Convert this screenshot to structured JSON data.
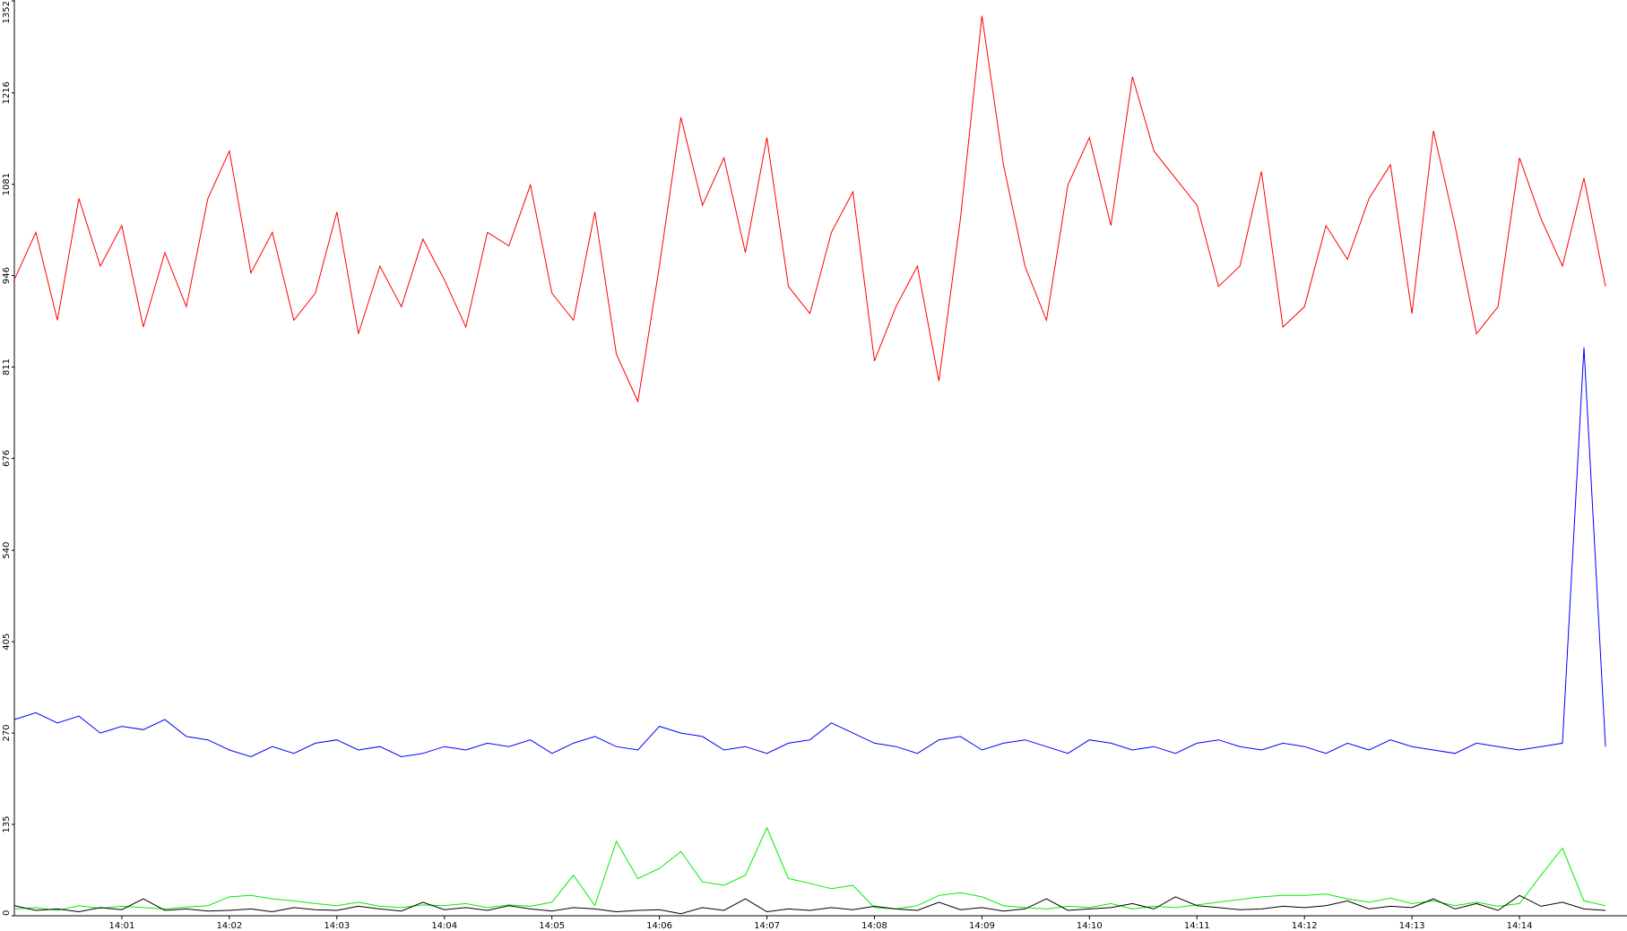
{
  "chart_data": {
    "type": "line",
    "x": [
      0,
      0.2,
      0.4,
      0.6,
      0.8,
      1,
      1.2,
      1.4,
      1.6,
      1.8,
      2,
      2.2,
      2.4,
      2.6,
      2.8,
      3,
      3.2,
      3.4,
      3.6,
      3.8,
      4,
      4.2,
      4.4,
      4.6,
      4.8,
      5,
      5.2,
      5.4,
      5.6,
      5.8,
      6,
      6.2,
      6.4,
      6.6,
      6.8,
      7,
      7.2,
      7.4,
      7.6,
      7.8,
      8,
      8.2,
      8.4,
      8.6,
      8.8,
      9,
      9.2,
      9.4,
      9.6,
      9.8,
      10,
      10.2,
      10.4,
      10.6,
      10.8,
      11,
      11.2,
      11.4,
      11.6,
      11.8,
      12,
      12.2,
      12.4,
      12.6,
      12.8,
      13,
      13.2,
      13.4,
      13.6,
      13.8,
      14,
      14.2,
      14.4,
      14.6,
      14.8
    ],
    "xlim": [
      0,
      15
    ],
    "xticks": [
      {
        "value": 1,
        "label": "14:01"
      },
      {
        "value": 2,
        "label": "14:02"
      },
      {
        "value": 3,
        "label": "14:03"
      },
      {
        "value": 4,
        "label": "14:04"
      },
      {
        "value": 5,
        "label": "14:05"
      },
      {
        "value": 6,
        "label": "14:06"
      },
      {
        "value": 7,
        "label": "14:07"
      },
      {
        "value": 8,
        "label": "14:08"
      },
      {
        "value": 9,
        "label": "14:09"
      },
      {
        "value": 10,
        "label": "14:10"
      },
      {
        "value": 11,
        "label": "14:11"
      },
      {
        "value": 12,
        "label": "14:12"
      },
      {
        "value": 13,
        "label": "14:13"
      },
      {
        "value": 14,
        "label": "14:14"
      }
    ],
    "ylim": [
      0,
      1352
    ],
    "yticks": [
      0,
      135,
      270,
      405,
      540,
      676,
      811,
      946,
      1081,
      1216,
      1352
    ],
    "series": [
      {
        "color": "#ff0000",
        "values": [
          940,
          1010,
          880,
          1060,
          960,
          1020,
          870,
          980,
          900,
          1060,
          1130,
          950,
          1010,
          880,
          920,
          1040,
          860,
          960,
          900,
          1000,
          940,
          870,
          1010,
          990,
          1080,
          920,
          880,
          1040,
          830,
          760,
          960,
          1180,
          1050,
          1120,
          980,
          1150,
          930,
          890,
          1010,
          1070,
          820,
          900,
          960,
          790,
          1030,
          1330,
          1110,
          960,
          880,
          1080,
          1150,
          1020,
          1240,
          1130,
          1090,
          1050,
          930,
          960,
          1100,
          870,
          900,
          1020,
          970,
          1060,
          1110,
          890,
          1160,
          1020,
          860,
          900,
          1120,
          1030,
          960,
          1090,
          930
        ]
      },
      {
        "color": "#0000ff",
        "values": [
          290,
          300,
          285,
          295,
          270,
          280,
          275,
          290,
          265,
          260,
          245,
          235,
          250,
          240,
          255,
          260,
          245,
          250,
          235,
          240,
          250,
          245,
          255,
          250,
          260,
          240,
          255,
          265,
          250,
          245,
          280,
          270,
          265,
          245,
          250,
          240,
          255,
          260,
          285,
          270,
          255,
          250,
          240,
          260,
          265,
          245,
          255,
          260,
          250,
          240,
          260,
          255,
          245,
          250,
          240,
          255,
          260,
          250,
          245,
          255,
          250,
          240,
          255,
          245,
          260,
          250,
          245,
          240,
          255,
          250,
          245,
          250,
          255,
          840,
          250
        ]
      },
      {
        "color": "#00ee00",
        "values": [
          10,
          12,
          8,
          15,
          11,
          14,
          12,
          10,
          13,
          15,
          28,
          30,
          25,
          22,
          18,
          15,
          20,
          14,
          12,
          16,
          15,
          18,
          12,
          16,
          14,
          20,
          60,
          15,
          110,
          55,
          70,
          95,
          50,
          45,
          60,
          130,
          55,
          48,
          40,
          45,
          12,
          10,
          15,
          30,
          34,
          28,
          15,
          12,
          10,
          14,
          12,
          18,
          10,
          14,
          12,
          16,
          20,
          24,
          28,
          30,
          30,
          32,
          25,
          20,
          26,
          18,
          22,
          15,
          20,
          14,
          18,
          60,
          100,
          22,
          15
        ]
      },
      {
        "color": "#000000",
        "values": [
          15,
          8,
          10,
          6,
          12,
          9,
          25,
          8,
          10,
          7,
          8,
          10,
          6,
          12,
          9,
          8,
          14,
          10,
          7,
          20,
          9,
          12,
          8,
          15,
          10,
          7,
          12,
          10,
          6,
          8,
          9,
          3,
          12,
          8,
          25,
          6,
          10,
          8,
          12,
          9,
          14,
          10,
          8,
          20,
          9,
          12,
          7,
          10,
          25,
          8,
          10,
          12,
          18,
          10,
          28,
          15,
          12,
          9,
          10,
          14,
          12,
          15,
          22,
          10,
          14,
          12,
          25,
          10,
          18,
          8,
          30,
          14,
          20,
          10,
          8
        ]
      }
    ]
  }
}
